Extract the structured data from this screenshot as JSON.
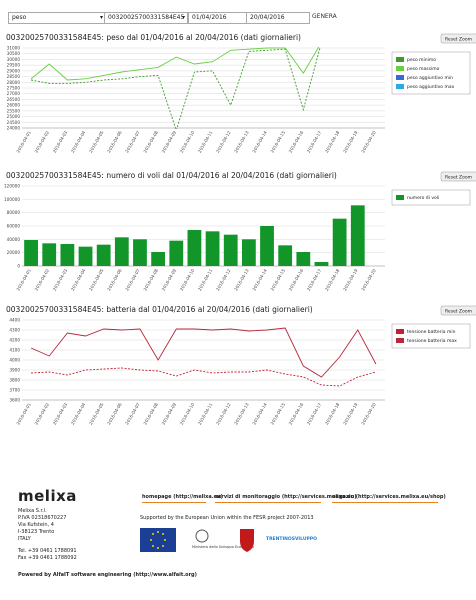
{
  "form": {
    "parameter": "peso",
    "device": "00320025700331584E45",
    "date_from": "01/04/2016",
    "date_to": "20/04/2016",
    "submit": "GENERA"
  },
  "reset_zoom": "Reset Zoom",
  "chart_data": [
    {
      "type": "line",
      "title": "00320025700331584E45: peso dal 01/04/2016 al 20/04/2016 (dati giornalieri)",
      "categories": [
        "2016-04-01",
        "2016-04-02",
        "2016-04-03",
        "2016-04-04",
        "2016-04-05",
        "2016-04-06",
        "2016-04-07",
        "2016-04-08",
        "2016-04-09",
        "2016-04-10",
        "2016-04-11",
        "2016-04-12",
        "2016-04-13",
        "2016-04-14",
        "2016-04-15",
        "2016-04-16",
        "2016-04-17",
        "2016-04-18",
        "2016-04-19",
        "2016-04-20"
      ],
      "series": [
        {
          "name": "peso minimo",
          "color": "#3f9a2e",
          "dashed": true,
          "values": [
            28200,
            27900,
            27900,
            28000,
            28200,
            28300,
            28500,
            28600,
            23800,
            28900,
            29000,
            26000,
            30700,
            30800,
            30900,
            25600,
            31500,
            null,
            null,
            null
          ]
        },
        {
          "name": "peso massimo",
          "color": "#66d13f",
          "dashed": false,
          "values": [
            28300,
            29600,
            28200,
            28300,
            28600,
            28900,
            29100,
            29300,
            30200,
            29600,
            29800,
            30800,
            30900,
            31000,
            31000,
            28800,
            31500,
            null,
            null,
            null
          ]
        },
        {
          "name": "peso aggiuntivo min",
          "color": "#2f6fd0",
          "dashed": false,
          "values": [
            null,
            null,
            null,
            null,
            null,
            null,
            null,
            null,
            null,
            null,
            null,
            null,
            null,
            null,
            null,
            null,
            null,
            null,
            null,
            null
          ]
        },
        {
          "name": "peso aggiuntivo max",
          "color": "#29a9e8",
          "dashed": false,
          "values": [
            null,
            null,
            null,
            null,
            null,
            null,
            null,
            null,
            null,
            null,
            null,
            null,
            null,
            null,
            null,
            null,
            null,
            null,
            null,
            null
          ]
        }
      ],
      "ylim": [
        24000,
        31000
      ],
      "yticks": [
        24000,
        24500,
        25000,
        25500,
        26000,
        26500,
        27000,
        27500,
        28000,
        28500,
        29000,
        29500,
        30000,
        30500,
        31000
      ],
      "grid": true,
      "legend": "right"
    },
    {
      "type": "bar",
      "title": "00320025700331584E45: numero di voli dal 01/04/2016 al 20/04/2016 (dati giornalieri)",
      "categories": [
        "2016-04-01",
        "2016-04-02",
        "2016-04-03",
        "2016-04-04",
        "2016-04-05",
        "2016-04-06",
        "2016-04-07",
        "2016-04-08",
        "2016-04-09",
        "2016-04-10",
        "2016-04-11",
        "2016-04-12",
        "2016-04-13",
        "2016-04-14",
        "2016-04-15",
        "2016-04-16",
        "2016-04-17",
        "2016-04-18",
        "2016-04-19",
        "2016-04-20"
      ],
      "series": [
        {
          "name": "numero di voli",
          "color": "#12962a",
          "values": [
            39000,
            34000,
            33000,
            29000,
            32000,
            43000,
            40000,
            21000,
            38000,
            54000,
            52000,
            47000,
            40000,
            60000,
            31000,
            21000,
            6000,
            71000,
            91000,
            0
          ]
        }
      ],
      "ylim": [
        0,
        120000
      ],
      "yticks": [
        0,
        20000,
        40000,
        60000,
        80000,
        100000,
        120000
      ],
      "grid": true,
      "legend": "right"
    },
    {
      "type": "line",
      "title": "00320025700331584E45: batteria dal 01/04/2016 al 20/04/2016 (dati giornalieri)",
      "categories": [
        "2016-04-01",
        "2016-04-02",
        "2016-04-03",
        "2016-04-04",
        "2016-04-05",
        "2016-04-06",
        "2016-04-07",
        "2016-04-08",
        "2016-04-09",
        "2016-04-10",
        "2016-04-11",
        "2016-04-12",
        "2016-04-13",
        "2016-04-14",
        "2016-04-15",
        "2016-04-16",
        "2016-04-17",
        "2016-04-18",
        "2016-04-19",
        "2016-04-20"
      ],
      "series": [
        {
          "name": "tensione batteria min",
          "color": "#c42032",
          "dashed": true,
          "values": [
            3870,
            3880,
            3850,
            3900,
            3910,
            3920,
            3900,
            3890,
            3840,
            3900,
            3870,
            3880,
            3880,
            3900,
            3860,
            3830,
            3750,
            3740,
            3830,
            3880
          ]
        },
        {
          "name": "tensione batteria max",
          "color": "#b8283a",
          "dashed": false,
          "values": [
            4120,
            4040,
            4270,
            4240,
            4310,
            4300,
            4310,
            4000,
            4310,
            4310,
            4300,
            4310,
            4290,
            4300,
            4320,
            3940,
            3830,
            4030,
            4300,
            3960
          ]
        }
      ],
      "ylim": [
        3600,
        4400
      ],
      "yticks": [
        3600,
        3700,
        3800,
        3900,
        4000,
        4100,
        4200,
        4300,
        4400
      ],
      "grid": true,
      "legend": "right"
    }
  ],
  "footer": {
    "logo": "melixa",
    "address": [
      "Melixa S.r.l.",
      "P.IVA 02318670227",
      "Via Kufstein, 4",
      "I-38123 Trento",
      "ITALY"
    ],
    "contacts": [
      "Tel. +39 0461 1788091",
      "Fax +39 0461 1788092"
    ],
    "links": [
      "homepage (http://melixa.eu)",
      "servizi di monitoraggio (http://services.melixa.eu)",
      "negozio (http://services.melixa.eu/shop)"
    ],
    "support": "Supported by the European Union within the FESR project 2007-2013",
    "ministry": "Ministero dello Sviluppo Economico",
    "trentino": "TRENTINOSVILUPPO",
    "powered": "Powered by AlfaIT software engineering (http://www.alfait.org)"
  }
}
